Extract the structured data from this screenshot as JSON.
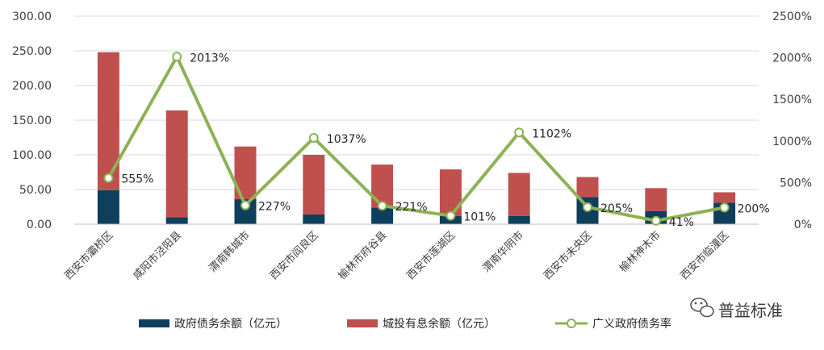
{
  "chart_data": {
    "type": "bar+line",
    "categories": [
      "西安市灞桥区",
      "咸阳市泾阳县",
      "渭南韩城市",
      "西安市阎良区",
      "榆林市府谷县",
      "西安市莲湖区",
      "渭南华阴市",
      "西安市未央区",
      "榆林神木市",
      "西安市临潼区"
    ],
    "series": [
      {
        "name": "政府债务余额（亿元）",
        "type": "stacked-bar",
        "axis": "left",
        "color": "#0e3f5c",
        "values": [
          49,
          10,
          36,
          14,
          24,
          12,
          12,
          39,
          19,
          31
        ]
      },
      {
        "name": "城投有息余额（亿元）",
        "type": "stacked-bar",
        "axis": "left",
        "color": "#c0504d",
        "values": [
          199,
          154,
          76,
          86,
          62,
          67,
          62,
          29,
          33,
          15
        ]
      },
      {
        "name": "广义政府债务率",
        "type": "line",
        "axis": "right",
        "color": "#8db255",
        "values": [
          555,
          2013,
          227,
          1037,
          221,
          101,
          1102,
          205,
          41,
          200
        ],
        "labels": [
          "555%",
          "2013%",
          "227%",
          "1037%",
          "221%",
          "101%",
          "1102%",
          "205%",
          "41%",
          "200%"
        ]
      }
    ],
    "y_left": {
      "min": 0,
      "max": 300,
      "ticks": [
        "0.00",
        "50.00",
        "100.00",
        "150.00",
        "200.00",
        "250.00",
        "300.00"
      ]
    },
    "y_right": {
      "min": 0,
      "max": 2500,
      "ticks": [
        "0%",
        "500%",
        "1000%",
        "1500%",
        "2000%",
        "2500%"
      ]
    },
    "grid": true,
    "legend_position": "bottom"
  },
  "watermark": {
    "text": "普益标准",
    "icon": "wechat-icon"
  }
}
